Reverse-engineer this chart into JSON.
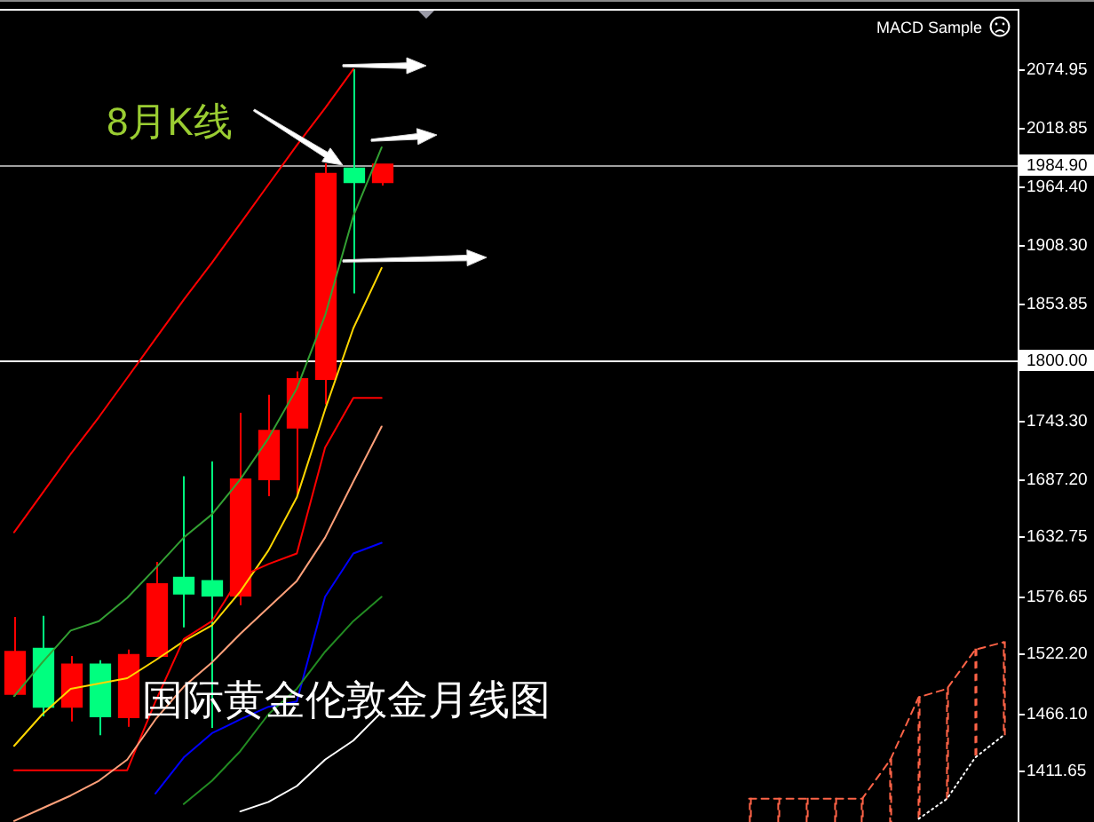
{
  "chart_data": {
    "type": "candlestick",
    "title": "国际黄金伦敦金月线图",
    "annotations": [
      "8月K线",
      "MACD Sample"
    ],
    "categories": [
      null,
      null,
      null,
      null,
      null,
      null,
      null,
      null,
      null,
      null,
      null,
      null,
      null,
      null,
      null,
      null,
      null,
      null,
      null,
      null,
      null,
      null,
      null,
      null,
      null,
      null,
      null,
      null,
      null,
      null,
      null,
      null,
      null,
      null,
      null,
      null
    ],
    "ohlc": [
      [
        1484,
        1557,
        1482,
        1524
      ],
      [
        1527,
        1558,
        1463,
        1472
      ],
      [
        1472,
        1520,
        1458,
        1512
      ],
      [
        1512,
        1516,
        1445,
        1463
      ],
      [
        1462,
        1526,
        1453,
        1521
      ],
      [
        1520,
        1609,
        1519,
        1588
      ],
      [
        1594,
        1690,
        1547,
        1579
      ],
      [
        1591,
        1704,
        1452,
        1577
      ],
      [
        1577,
        1750,
        1568,
        1687
      ],
      [
        1687,
        1767,
        1671,
        1733
      ],
      [
        1736,
        1789,
        1672,
        1782
      ],
      [
        1782,
        1986,
        1758,
        1976
      ],
      [
        1981,
        2075,
        1863,
        1968
      ],
      [
        1968,
        1984.9,
        1965,
        1984.9
      ],
      null,
      null,
      null,
      null,
      null,
      null,
      null,
      null,
      null,
      null,
      null,
      null,
      null,
      null,
      null,
      null,
      null,
      null,
      null,
      null,
      null,
      null
    ],
    "colors": [
      "#ff0000",
      "#00ff7f",
      "#ff0000",
      "#00ff7f",
      "#ff0000",
      "#ff0000",
      "#00ff7f",
      "#00ff7f",
      "#ff0000",
      "#ff0000",
      "#ff0000",
      "#ff0000",
      "#00ff7f",
      "#ff0000",
      null,
      null,
      null,
      null,
      null,
      null,
      null,
      null,
      null,
      null,
      null,
      null,
      null,
      null,
      null,
      null,
      null,
      null,
      null,
      null,
      null,
      null
    ],
    "ylim": [
      1363,
      2132
    ],
    "yticks": [
      2074.95,
      2018.85,
      {
        "value": 1964.4,
        "label": "1964.40"
      },
      {
        "value": 1908.3,
        "label": "1908.30"
      },
      1853.85,
      {
        "value": 1743.3,
        "label": "1743.30"
      },
      {
        "value": 1687.2,
        "label": "1687.20"
      },
      1632.75,
      1576.65,
      {
        "value": 1522.2,
        "label": "1522.20"
      },
      {
        "value": 1466.1,
        "label": "1466.10"
      },
      1411.65
    ],
    "tick_labels": "y",
    "ref_lines": [
      {
        "axis": "y",
        "value": 1984.9,
        "label": "1984.90",
        "color": "#a0a0a0"
      },
      {
        "axis": "y",
        "value": 1800,
        "label": "1800.00",
        "color": "#ffffff"
      }
    ],
    "series": [
      {
        "type": "line",
        "color": "#ff0000",
        "values": [
          1637,
          1674,
          1711,
          1746,
          1783,
          1820,
          1857,
          1892,
          1929,
          1966,
          2003,
          2038,
          2075,
          null,
          null,
          null,
          null,
          null,
          null,
          null,
          null,
          null,
          null,
          null,
          null,
          null,
          null,
          null,
          null,
          null,
          null,
          null,
          null,
          null,
          null,
          null
        ]
      },
      {
        "type": "line",
        "color": "#33a033",
        "values": [
          1482,
          1514,
          1544,
          1553,
          1575,
          1603,
          1632,
          1654,
          1687,
          1726,
          1773,
          1842,
          1936,
          2001,
          null,
          null,
          null,
          null,
          null,
          null,
          null,
          null,
          null,
          null,
          null,
          null,
          null,
          null,
          null,
          null,
          null,
          null,
          null,
          null,
          null,
          null
        ]
      },
      {
        "type": "line",
        "color": "#ffd700",
        "values": [
          1435,
          1465,
          1489,
          1494,
          1499,
          1516,
          1534,
          1549,
          1581,
          1620,
          1670,
          1753,
          1830,
          1887,
          null,
          null,
          null,
          null,
          null,
          null,
          null,
          null,
          null,
          null,
          null,
          null,
          null,
          null,
          null,
          null,
          null,
          null,
          null,
          null,
          null,
          null
        ]
      },
      {
        "type": "line",
        "color": "#ff0000",
        "values": [
          1412,
          1412,
          1412,
          1412,
          1412,
          1477,
          1536,
          1553,
          1595,
          1607,
          1617,
          1717,
          1764,
          1764,
          null,
          null,
          null,
          null,
          null,
          null,
          null,
          null,
          null,
          null,
          null,
          null,
          null,
          null,
          null,
          null,
          null,
          null,
          null,
          null,
          null,
          null
        ]
      },
      {
        "type": "line",
        "color": "#ffa07a",
        "values": [
          1364,
          1376,
          1388,
          1402,
          1422,
          1460,
          1491,
          1514,
          1541,
          1566,
          1591,
          1632,
          1685,
          1737,
          null,
          null,
          null,
          null,
          null,
          null,
          null,
          null,
          null,
          null,
          null,
          null,
          null,
          null,
          null,
          null,
          null,
          null,
          null,
          null,
          null,
          null
        ]
      },
      {
        "type": "line",
        "color": "#0000ff",
        "values": [
          null,
          null,
          null,
          null,
          null,
          1390,
          1424,
          1447,
          1460,
          1472,
          1477,
          1576,
          1617,
          1627,
          null,
          null,
          null,
          null,
          null,
          null,
          null,
          null,
          null,
          null,
          null,
          null,
          null,
          null,
          null,
          null,
          null,
          null,
          null,
          null,
          null,
          null
        ]
      },
      {
        "type": "line",
        "color": "#228b22",
        "values": [
          null,
          null,
          null,
          null,
          null,
          null,
          1380,
          1402,
          1430,
          1465,
          1489,
          1524,
          1553,
          1576,
          null,
          null,
          null,
          null,
          null,
          null,
          null,
          null,
          null,
          null,
          null,
          null,
          null,
          null,
          null,
          null,
          null,
          null,
          null,
          null,
          null,
          null
        ]
      },
      {
        "type": "line",
        "color": "#ffffff",
        "values": [
          null,
          null,
          null,
          null,
          null,
          null,
          null,
          null,
          1373,
          1382,
          1397,
          1422,
          1440,
          1467,
          null,
          null,
          null,
          null,
          null,
          null,
          null,
          null,
          null,
          null,
          null,
          null,
          null,
          null,
          null,
          null,
          null,
          null,
          null,
          null,
          null,
          null
        ]
      },
      {
        "type": "line",
        "color": "#ff6347",
        "line_style": "dashed",
        "values": [
          null,
          null,
          null,
          null,
          null,
          null,
          null,
          null,
          null,
          null,
          null,
          null,
          null,
          null,
          null,
          null,
          null,
          null,
          null,
          null,
          null,
          null,
          null,
          null,
          null,
          null,
          1385,
          1385,
          1385,
          1385,
          1385,
          1422,
          1481,
          1489,
          1526,
          1533
        ]
      },
      {
        "type": "line",
        "color": "#ffffff",
        "line_style": "dotted",
        "values": [
          null,
          null,
          null,
          null,
          null,
          null,
          null,
          null,
          null,
          null,
          null,
          null,
          null,
          null,
          null,
          null,
          null,
          null,
          null,
          null,
          null,
          null,
          null,
          null,
          null,
          null,
          null,
          null,
          null,
          null,
          null,
          null,
          1366,
          1385,
          1424,
          1445
        ]
      },
      {
        "type": "bar",
        "color": "#ff6347",
        "line_style": "dashed",
        "base": [
          null,
          null,
          null,
          null,
          null,
          null,
          null,
          null,
          null,
          null,
          null,
          null,
          null,
          null,
          null,
          null,
          null,
          null,
          null,
          null,
          null,
          null,
          null,
          null,
          null,
          null,
          1363,
          1363,
          1363,
          1363,
          1363,
          1363,
          1366,
          1385,
          1424,
          1445
        ],
        "values": [
          null,
          null,
          null,
          null,
          null,
          null,
          null,
          null,
          null,
          null,
          null,
          null,
          null,
          null,
          null,
          null,
          null,
          null,
          null,
          null,
          null,
          null,
          null,
          null,
          null,
          null,
          22,
          22,
          22,
          22,
          22,
          59,
          115,
          104,
          102,
          88
        ]
      }
    ]
  }
}
